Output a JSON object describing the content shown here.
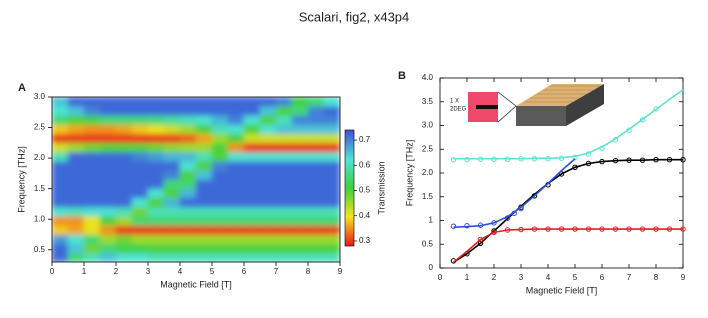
{
  "title": "Scalari, fig2, x43p4",
  "chart_data": [
    {
      "type": "heatmap",
      "panel_label": "A",
      "xlabel": "Magnetic Field [T]",
      "ylabel": "Frequency [THz]",
      "colorbar_label": "Transmission",
      "xlim": [
        0,
        9
      ],
      "xticks": [
        0,
        1,
        2,
        3,
        4,
        5,
        6,
        7,
        8,
        9
      ],
      "ylim": [
        0.3,
        3.0
      ],
      "yticks": [
        0.5,
        {
          "value": 1,
          "label": "1.0"
        },
        1.5,
        {
          "value": 2,
          "label": "2.0"
        },
        2.5,
        {
          "value": 3,
          "label": "3.0"
        }
      ],
      "zlim": [
        0.28,
        0.74
      ],
      "zticks": [
        0.3,
        0.4,
        0.5,
        0.6,
        0.7
      ],
      "colormap": [
        "#e8141c",
        "#f5e21e",
        "#3dd13d",
        "#4fe3d8",
        "#3b4fd8"
      ],
      "x_edges": [
        0,
        0.5,
        1,
        1.5,
        2,
        2.5,
        3,
        3.5,
        4,
        4.5,
        5,
        5.5,
        6,
        6.5,
        7,
        7.5,
        8,
        8.5,
        9
      ],
      "y_edges": [
        0.3,
        0.45,
        0.6,
        0.75,
        0.9,
        1.05,
        1.2,
        1.35,
        1.5,
        1.65,
        1.8,
        1.95,
        2.1,
        2.25,
        2.4,
        2.55,
        2.7,
        2.85,
        3.0
      ],
      "z": [
        [
          0.72,
          0.55,
          0.6,
          0.65,
          0.62,
          0.62,
          0.6,
          0.6,
          0.6,
          0.6,
          0.6,
          0.6,
          0.6,
          0.6,
          0.6,
          0.6,
          0.6,
          0.6
        ],
        [
          0.72,
          0.65,
          0.48,
          0.55,
          0.52,
          0.52,
          0.5,
          0.5,
          0.5,
          0.5,
          0.5,
          0.5,
          0.5,
          0.5,
          0.5,
          0.5,
          0.5,
          0.5
        ],
        [
          0.68,
          0.62,
          0.55,
          0.45,
          0.48,
          0.45,
          0.45,
          0.45,
          0.45,
          0.45,
          0.45,
          0.45,
          0.45,
          0.45,
          0.45,
          0.45,
          0.45,
          0.45
        ],
        [
          0.38,
          0.36,
          0.4,
          0.35,
          0.3,
          0.3,
          0.3,
          0.3,
          0.3,
          0.3,
          0.3,
          0.3,
          0.3,
          0.3,
          0.3,
          0.3,
          0.3,
          0.3
        ],
        [
          0.35,
          0.35,
          0.4,
          0.5,
          0.45,
          0.55,
          0.55,
          0.55,
          0.55,
          0.55,
          0.55,
          0.55,
          0.55,
          0.55,
          0.55,
          0.55,
          0.55,
          0.55
        ],
        [
          0.62,
          0.6,
          0.62,
          0.62,
          0.6,
          0.48,
          0.6,
          0.6,
          0.6,
          0.6,
          0.6,
          0.6,
          0.6,
          0.6,
          0.6,
          0.6,
          0.6,
          0.6
        ],
        [
          0.72,
          0.72,
          0.72,
          0.72,
          0.72,
          0.62,
          0.5,
          0.66,
          0.72,
          0.72,
          0.72,
          0.72,
          0.72,
          0.72,
          0.72,
          0.72,
          0.72,
          0.72
        ],
        [
          0.72,
          0.72,
          0.72,
          0.72,
          0.72,
          0.72,
          0.62,
          0.5,
          0.66,
          0.72,
          0.72,
          0.72,
          0.72,
          0.72,
          0.72,
          0.72,
          0.72,
          0.72
        ],
        [
          0.72,
          0.72,
          0.72,
          0.72,
          0.72,
          0.72,
          0.72,
          0.55,
          0.55,
          0.72,
          0.72,
          0.72,
          0.72,
          0.72,
          0.72,
          0.72,
          0.72,
          0.72
        ],
        [
          0.72,
          0.72,
          0.72,
          0.72,
          0.72,
          0.72,
          0.72,
          0.7,
          0.5,
          0.65,
          0.72,
          0.72,
          0.72,
          0.72,
          0.72,
          0.72,
          0.72,
          0.72
        ],
        [
          0.72,
          0.72,
          0.72,
          0.72,
          0.72,
          0.72,
          0.72,
          0.72,
          0.62,
          0.5,
          0.7,
          0.72,
          0.72,
          0.72,
          0.72,
          0.72,
          0.72,
          0.72
        ],
        [
          0.6,
          0.72,
          0.72,
          0.72,
          0.72,
          0.7,
          0.68,
          0.66,
          0.66,
          0.6,
          0.5,
          0.62,
          0.62,
          0.62,
          0.62,
          0.62,
          0.62,
          0.62
        ],
        [
          0.42,
          0.45,
          0.48,
          0.5,
          0.5,
          0.5,
          0.48,
          0.46,
          0.45,
          0.45,
          0.5,
          0.35,
          0.3,
          0.3,
          0.3,
          0.3,
          0.3,
          0.3
        ],
        [
          0.3,
          0.3,
          0.3,
          0.3,
          0.3,
          0.3,
          0.3,
          0.3,
          0.32,
          0.36,
          0.45,
          0.5,
          0.42,
          0.42,
          0.42,
          0.42,
          0.42,
          0.42
        ],
        [
          0.38,
          0.36,
          0.35,
          0.35,
          0.36,
          0.38,
          0.4,
          0.42,
          0.45,
          0.5,
          0.6,
          0.62,
          0.5,
          0.62,
          0.65,
          0.65,
          0.65,
          0.65
        ],
        [
          0.55,
          0.5,
          0.52,
          0.55,
          0.55,
          0.55,
          0.56,
          0.58,
          0.6,
          0.62,
          0.66,
          0.7,
          0.62,
          0.5,
          0.6,
          0.7,
          0.7,
          0.7
        ],
        [
          0.62,
          0.65,
          0.7,
          0.72,
          0.72,
          0.72,
          0.72,
          0.72,
          0.72,
          0.72,
          0.72,
          0.72,
          0.72,
          0.65,
          0.5,
          0.55,
          0.7,
          0.72
        ],
        [
          0.65,
          0.72,
          0.72,
          0.72,
          0.72,
          0.72,
          0.72,
          0.72,
          0.72,
          0.72,
          0.72,
          0.72,
          0.72,
          0.72,
          0.7,
          0.52,
          0.55,
          0.62
        ]
      ]
    },
    {
      "type": "line",
      "panel_label": "B",
      "xlabel": "Magnetic Field [T]",
      "ylabel": "Frequency [THz]",
      "annotations": [
        "1 X",
        "2DEG"
      ],
      "xlim": [
        0,
        9
      ],
      "xticks": [
        0,
        1,
        2,
        3,
        4,
        5,
        6,
        7,
        8,
        9
      ],
      "ylim": [
        0,
        4
      ],
      "yticks": [
        0,
        0.5,
        1,
        1.5,
        {
          "value": 2,
          "label": "2.0"
        },
        2.5,
        {
          "value": 3,
          "label": "3.0"
        },
        3.5,
        {
          "value": 4,
          "label": "4.0"
        }
      ],
      "series": [
        {
          "color": "#5ee3d2",
          "marker": false,
          "x": [
            0.5,
            1,
            1.5,
            2,
            2.5,
            3,
            3.5,
            4,
            4.5,
            5,
            5.5,
            6,
            6.5,
            7,
            7.5,
            8,
            8.5,
            9
          ],
          "values": [
            2.3,
            2.3,
            2.3,
            2.3,
            2.3,
            2.3,
            2.31,
            2.31,
            2.32,
            2.35,
            2.42,
            2.55,
            2.72,
            2.92,
            3.13,
            3.34,
            3.55,
            3.75
          ]
        },
        {
          "color": "#5ee3d2",
          "marker": true,
          "x": [
            0.5,
            1,
            1.5,
            2,
            2.5,
            3,
            3.5,
            4,
            4.5,
            5,
            5.5,
            6,
            6.5,
            7,
            7.5,
            8
          ],
          "values": [
            2.28,
            2.28,
            2.29,
            2.29,
            2.29,
            2.3,
            2.3,
            2.3,
            2.31,
            2.33,
            2.4,
            2.52,
            2.7,
            2.9,
            3.12,
            3.35
          ]
        },
        {
          "color": "#000000",
          "marker": false,
          "x": [
            0.5,
            1,
            1.5,
            2,
            2.5,
            3,
            3.5,
            4,
            4.5,
            5,
            5.5,
            6,
            6.5,
            7,
            7.5,
            8,
            8.5,
            9
          ],
          "values": [
            0.12,
            0.3,
            0.52,
            0.78,
            1.04,
            1.3,
            1.55,
            1.78,
            1.98,
            2.12,
            2.2,
            2.24,
            2.26,
            2.27,
            2.27,
            2.28,
            2.28,
            2.28
          ]
        },
        {
          "color": "#000000",
          "marker": true,
          "x": [
            0.5,
            1,
            1.5,
            2,
            2.5,
            3,
            3.5,
            4,
            4.5,
            5,
            5.5,
            6,
            6.5,
            7,
            7.5,
            8,
            8.5,
            9
          ],
          "values": [
            0.15,
            0.3,
            0.52,
            0.78,
            1.05,
            1.28,
            1.52,
            1.75,
            1.98,
            2.12,
            2.2,
            2.24,
            2.26,
            2.27,
            2.27,
            2.28,
            2.28,
            2.28
          ]
        },
        {
          "color": "#3050e0",
          "marker": false,
          "x": [
            0.5,
            1,
            1.5,
            2,
            2.5,
            3,
            3.5,
            4,
            4.5,
            5
          ],
          "values": [
            0.86,
            0.87,
            0.89,
            0.95,
            1.08,
            1.28,
            1.52,
            1.78,
            2.05,
            2.3
          ]
        },
        {
          "color": "#3050e0",
          "marker": true,
          "x": [
            0.5,
            1,
            1.5,
            2,
            2.5,
            2.75,
            3
          ],
          "values": [
            0.88,
            0.89,
            0.9,
            0.95,
            1.05,
            1.15,
            1.25
          ]
        },
        {
          "color": "#e02020",
          "marker": false,
          "x": [
            0.5,
            1,
            1.5,
            2,
            2.5,
            3,
            3.5,
            4,
            4.5,
            5,
            5.5,
            6,
            6.5,
            7,
            7.5,
            8,
            8.5,
            9
          ],
          "values": [
            0.12,
            0.35,
            0.6,
            0.75,
            0.8,
            0.81,
            0.82,
            0.82,
            0.82,
            0.82,
            0.82,
            0.82,
            0.82,
            0.82,
            0.82,
            0.82,
            0.82,
            0.82
          ]
        },
        {
          "color": "#e02020",
          "marker": true,
          "x": [
            1.5,
            2,
            2.5,
            3,
            3.5,
            4,
            4.5,
            5,
            5.5,
            6,
            6.5,
            7,
            7.5,
            8,
            8.5,
            9
          ],
          "values": [
            0.6,
            0.75,
            0.8,
            0.81,
            0.82,
            0.82,
            0.82,
            0.82,
            0.82,
            0.82,
            0.82,
            0.82,
            0.82,
            0.82,
            0.82,
            0.82
          ]
        }
      ]
    }
  ]
}
